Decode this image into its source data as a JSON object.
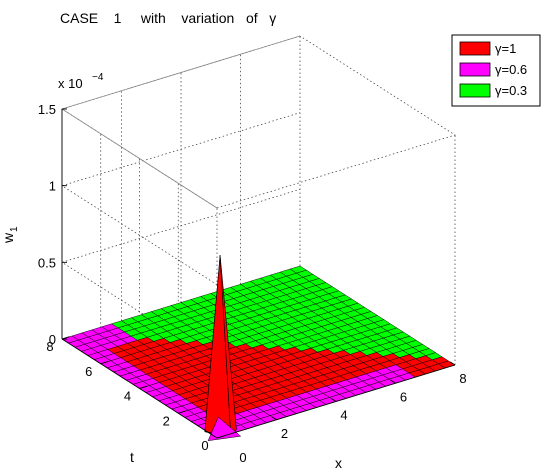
{
  "chart_data": {
    "type": "surface3d",
    "title": "CASE    1     with    variation   of   γ",
    "xlabel": "x",
    "ylabel": "t",
    "zlabel_main": "w",
    "zlabel_sub": "1",
    "z_exponent_label": "x 10",
    "z_exponent_power": "−4",
    "xlim": [
      0,
      8
    ],
    "ylim": [
      0,
      8
    ],
    "zlim": [
      0,
      1.5
    ],
    "x_ticks": [
      "2",
      "4",
      "6",
      "8"
    ],
    "y_ticks": [
      "0",
      "2",
      "4",
      "6",
      "8"
    ],
    "z_ticks": [
      "0",
      "0.5",
      "1",
      "1.5"
    ],
    "x_tick_values": [
      2,
      4,
      6,
      8
    ],
    "y_tick_values": [
      0,
      2,
      4,
      6,
      8
    ],
    "z_tick_values": [
      0,
      0.5,
      1,
      1.5
    ],
    "grid": true,
    "legend_position": "top-right",
    "peak": {
      "x": 0.3,
      "t": 0.3,
      "z": 1.15
    },
    "series": [
      {
        "name": "γ=1",
        "color": "#ff0000"
      },
      {
        "name": "γ=0.6",
        "color": "#ff00ff"
      },
      {
        "name": "γ=0.3",
        "color": "#00ff00"
      }
    ]
  }
}
